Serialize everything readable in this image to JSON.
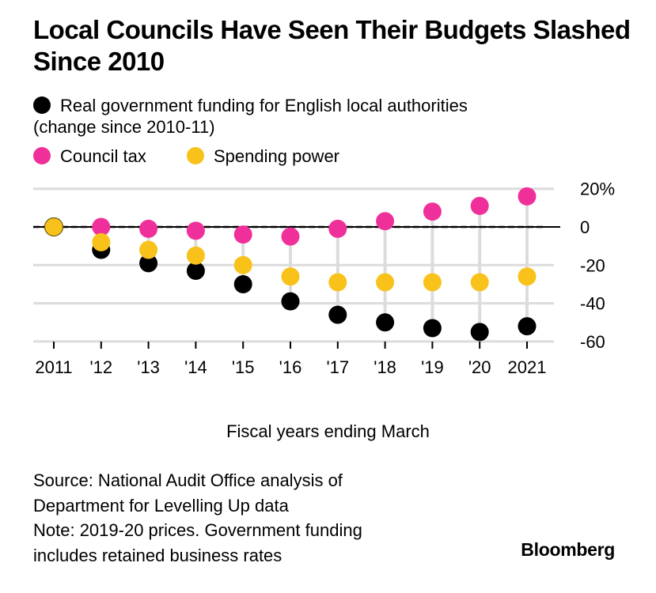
{
  "title": "Local Councils Have Seen Their Budgets Slashed Since 2010",
  "legend": {
    "government_funding": "Real government funding for English local authorities",
    "government_funding_sub": "(change since 2010-11)",
    "council_tax": "Council tax",
    "spending_power": "Spending power"
  },
  "colors": {
    "government_funding": "#000000",
    "council_tax": "#f0309a",
    "spending_power": "#f8c21a",
    "grid": "#dcdcdc",
    "stem": "#dcdcdc"
  },
  "xaxis_label": "Fiscal years ending March",
  "source": "Source: National Audit Office analysis of",
  "source_2": "Department for Levelling Up data",
  "note": "Note: 2019-20 prices. Government funding",
  "note_2": "includes retained business rates",
  "brand": "Bloomberg",
  "chart_data": {
    "type": "scatter",
    "categories": [
      "2011",
      "'12",
      "'13",
      "'14",
      "'15",
      "'16",
      "'17",
      "'18",
      "'19",
      "'20",
      "2021"
    ],
    "series": [
      {
        "name": "Real government funding for English local authorities",
        "values": [
          0,
          -12,
          -19,
          -23,
          -30,
          -39,
          -46,
          -50,
          -53,
          -55,
          -52
        ]
      },
      {
        "name": "Council tax",
        "values": [
          0,
          0,
          -1,
          -2,
          -4,
          -5,
          -1,
          3,
          8,
          11,
          16
        ]
      },
      {
        "name": "Spending power",
        "values": [
          0,
          -8,
          -12,
          -15,
          -20,
          -26,
          -29,
          -29,
          -29,
          -29,
          -26
        ]
      }
    ],
    "yticks": [
      20,
      0,
      -20,
      -40,
      -60
    ],
    "ytick_labels": [
      "20%",
      "0",
      "-20",
      "-40",
      "-60"
    ],
    "ylim": [
      -62,
      22
    ],
    "xlabel": "Fiscal years ending March",
    "ylabel": "",
    "grid": true,
    "baseline": "dashed line at 0"
  }
}
